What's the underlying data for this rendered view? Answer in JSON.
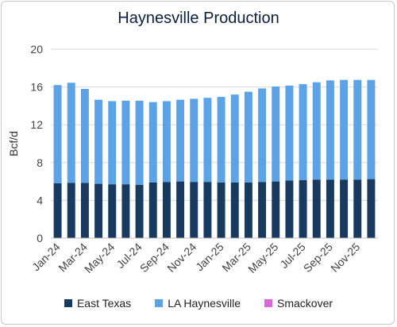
{
  "chart_data": {
    "type": "bar",
    "stacked": true,
    "title": "Haynesville Production",
    "ylabel": "Bcf/d",
    "xlabel": "",
    "ylim": [
      0,
      20
    ],
    "yticks": [
      0,
      4,
      8,
      12,
      16,
      20
    ],
    "grid": true,
    "legend_position": "bottom",
    "categories": [
      "Jan-24",
      "Feb-24",
      "Mar-24",
      "Apr-24",
      "May-24",
      "Jun-24",
      "Jul-24",
      "Aug-24",
      "Sep-24",
      "Oct-24",
      "Nov-24",
      "Dec-24",
      "Jan-25",
      "Feb-25",
      "Mar-25",
      "Apr-25",
      "May-25",
      "Jun-25",
      "Jul-25",
      "Aug-25",
      "Sep-25",
      "Oct-25",
      "Nov-25",
      "Dec-25"
    ],
    "xtick_labels": [
      "Jan-24",
      "Mar-24",
      "May-24",
      "Jul-24",
      "Sep-24",
      "Nov-24",
      "Jan-25",
      "Mar-25",
      "May-25",
      "Jul-25",
      "Sep-25",
      "Nov-25"
    ],
    "series": [
      {
        "name": "East Texas",
        "color": "#183a5e",
        "values": [
          5.8,
          5.85,
          5.85,
          5.75,
          5.7,
          5.7,
          5.65,
          5.9,
          5.95,
          6.0,
          5.95,
          5.95,
          5.9,
          5.9,
          5.9,
          5.95,
          6.0,
          6.1,
          6.15,
          6.2,
          6.2,
          6.2,
          6.2,
          6.25
        ]
      },
      {
        "name": "LA Haynesville",
        "color": "#5ba3e6",
        "values": [
          10.4,
          10.6,
          9.95,
          8.9,
          8.8,
          8.85,
          8.9,
          8.5,
          8.55,
          8.65,
          8.8,
          8.9,
          9.05,
          9.3,
          9.6,
          9.9,
          10.05,
          10.05,
          10.15,
          10.3,
          10.5,
          10.55,
          10.55,
          10.5
        ]
      },
      {
        "name": "Smackover",
        "color": "#d86ad8",
        "values": [
          0,
          0,
          0,
          0,
          0,
          0,
          0,
          0,
          0,
          0,
          0,
          0,
          0,
          0,
          0,
          0,
          0,
          0,
          0,
          0,
          0,
          0,
          0,
          0
        ]
      }
    ]
  }
}
